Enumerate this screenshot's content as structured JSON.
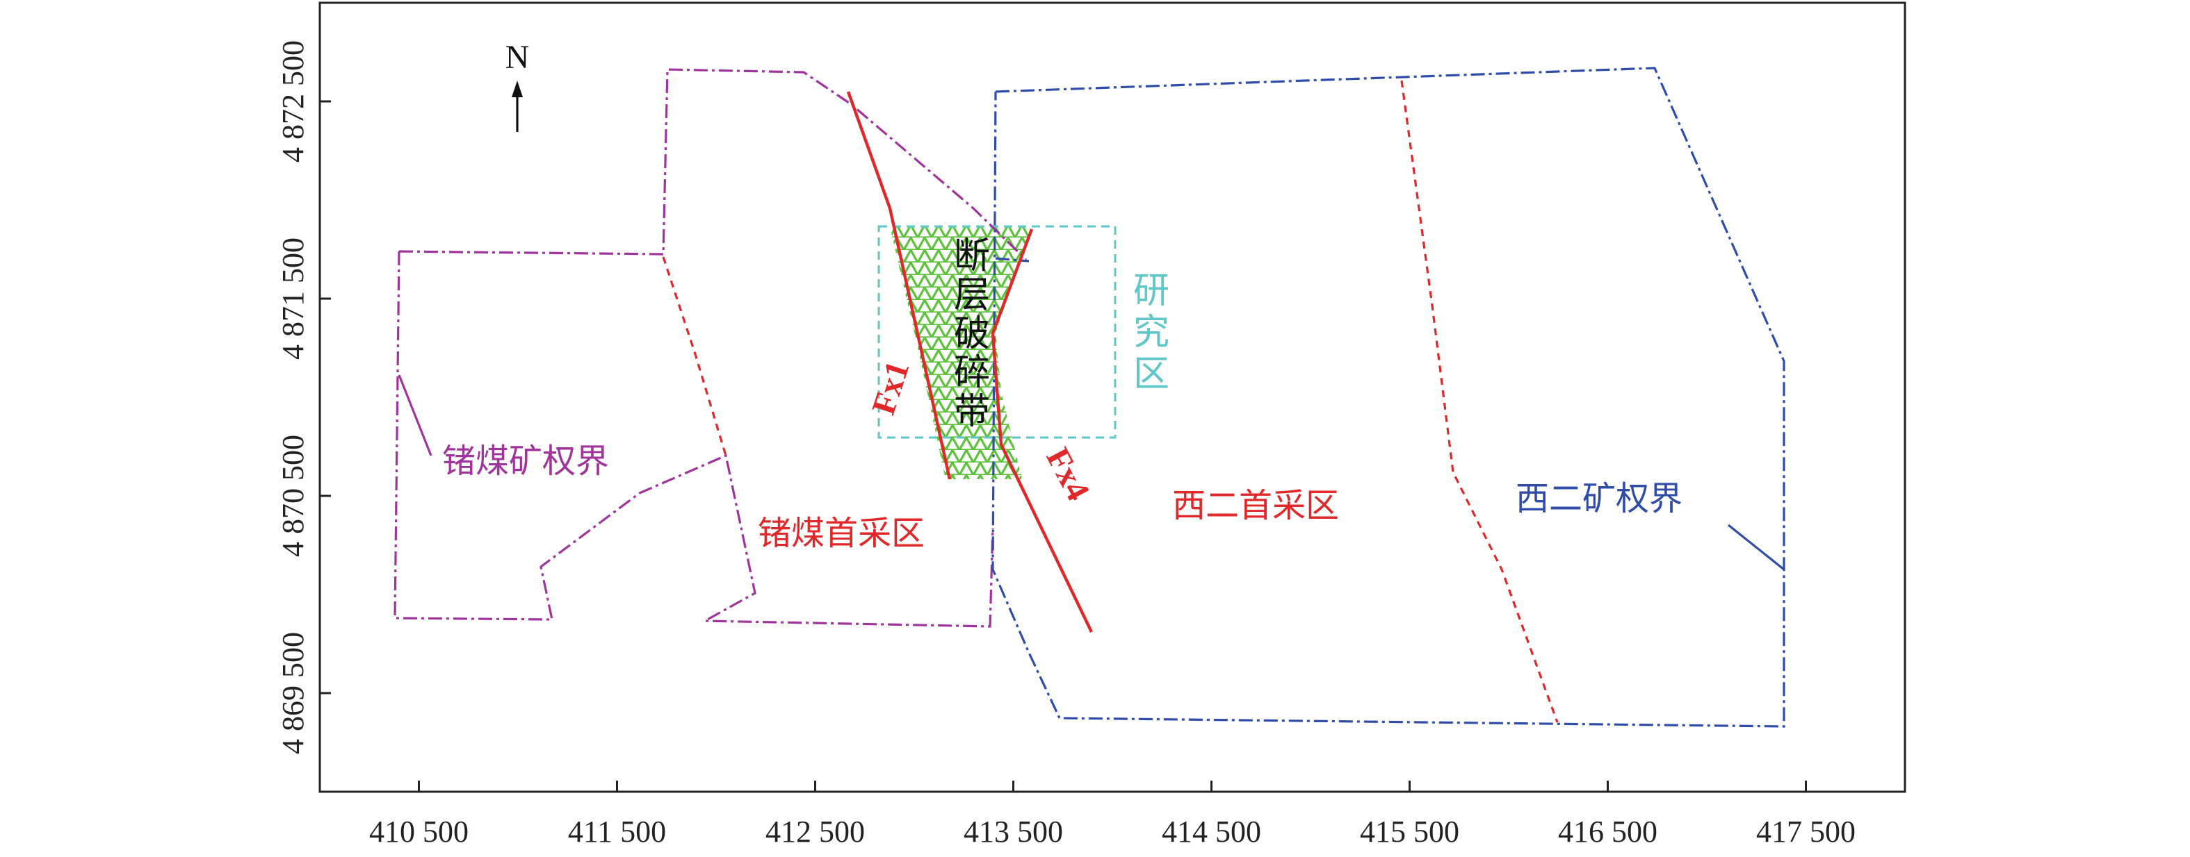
{
  "map": {
    "xlim": [
      410000,
      418000
    ],
    "ylim": [
      4869000,
      4873000
    ],
    "xticks": [
      {
        "value": 410500,
        "label": "410 500"
      },
      {
        "value": 411500,
        "label": "411 500"
      },
      {
        "value": 412500,
        "label": "412 500"
      },
      {
        "value": 413500,
        "label": "413 500"
      },
      {
        "value": 414500,
        "label": "414 500"
      },
      {
        "value": 415500,
        "label": "415 500"
      },
      {
        "value": 416500,
        "label": "416 500"
      },
      {
        "value": 417500,
        "label": "417 500"
      }
    ],
    "yticks": [
      {
        "value": 4869500,
        "label": "4 869 500"
      },
      {
        "value": 4870500,
        "label": "4 870 500"
      },
      {
        "value": 4871500,
        "label": "4 871 500"
      },
      {
        "value": 4872500,
        "label": "4 872 500"
      }
    ],
    "labels": {
      "north": "N",
      "fault_zone": "断层破碎带",
      "study_area": "研究区",
      "fx1": "Fx1",
      "fx4": "Fx4",
      "zhemei_boundary": "锗煤矿权界",
      "zhemei_first": "锗煤首采区",
      "xier_first": "西二首采区",
      "xier_boundary": "西二矿权界"
    }
  }
}
